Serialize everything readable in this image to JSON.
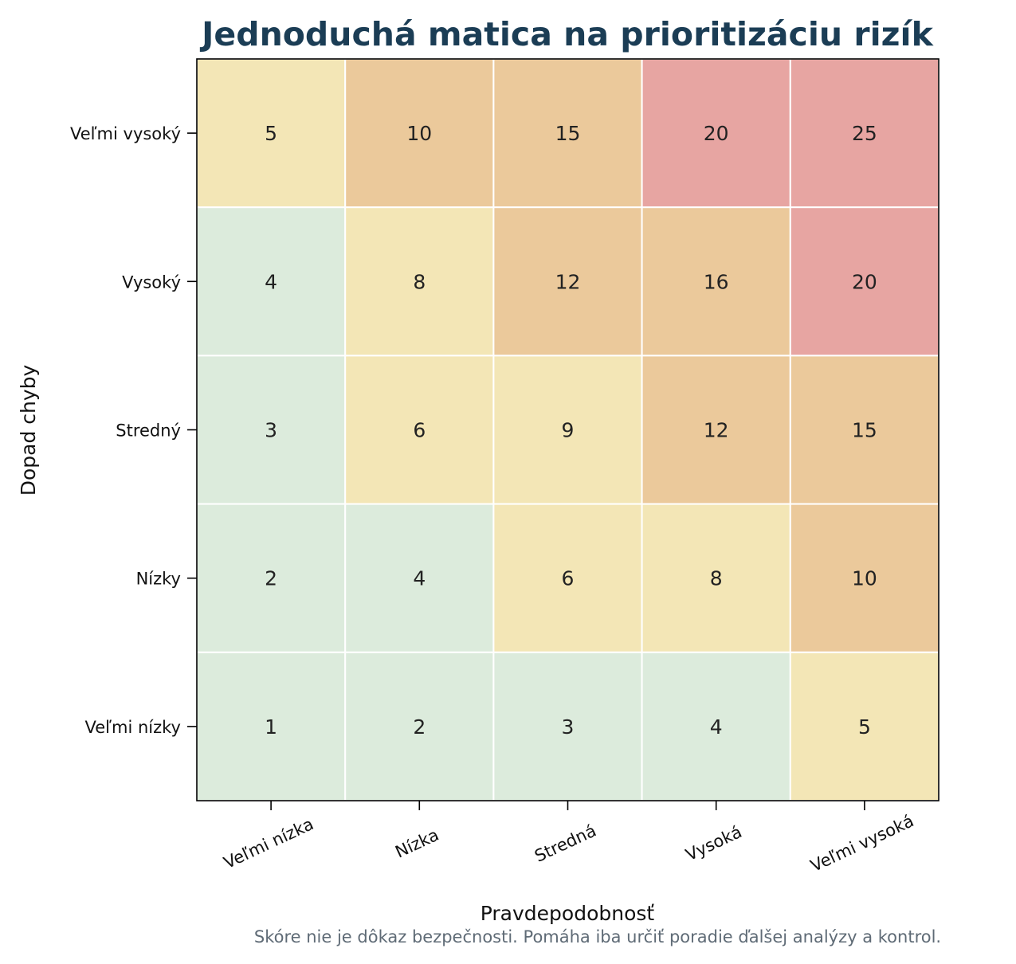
{
  "chart_data": {
    "type": "heatmap",
    "title": "Jednoduchá matica na prioritizáciu rizík",
    "xlabel": "Pravdepodobnosť",
    "ylabel": "Dopad chyby",
    "x_categories": [
      "Veľmi nízka",
      "Nízka",
      "Stredná",
      "Vysoká",
      "Veľmi vysoká"
    ],
    "y_categories_top_to_bottom": [
      "Veľmi vysoký",
      "Vysoký",
      "Stredný",
      "Nízky",
      "Veľmi nízky"
    ],
    "values_top_to_bottom": [
      [
        5,
        10,
        15,
        20,
        25
      ],
      [
        4,
        8,
        12,
        16,
        20
      ],
      [
        3,
        6,
        9,
        12,
        15
      ],
      [
        2,
        4,
        6,
        8,
        10
      ],
      [
        1,
        2,
        3,
        4,
        5
      ]
    ],
    "color_bands": [
      {
        "max": 4,
        "color": "#dcebdc"
      },
      {
        "max": 9,
        "color": "#f3e6b6"
      },
      {
        "max": 16,
        "color": "#ebc99b"
      },
      {
        "max": 25,
        "color": "#e7a5a2"
      }
    ],
    "grid_color": "#ffffff",
    "note": "Skóre nie je dôkaz bezpečnosti. Pomáha iba určiť poradie ďalšej analýzy a kontrol."
  },
  "colors": {
    "title": "#1b3d55",
    "note": "#5f6b76",
    "axis": "#000000"
  }
}
